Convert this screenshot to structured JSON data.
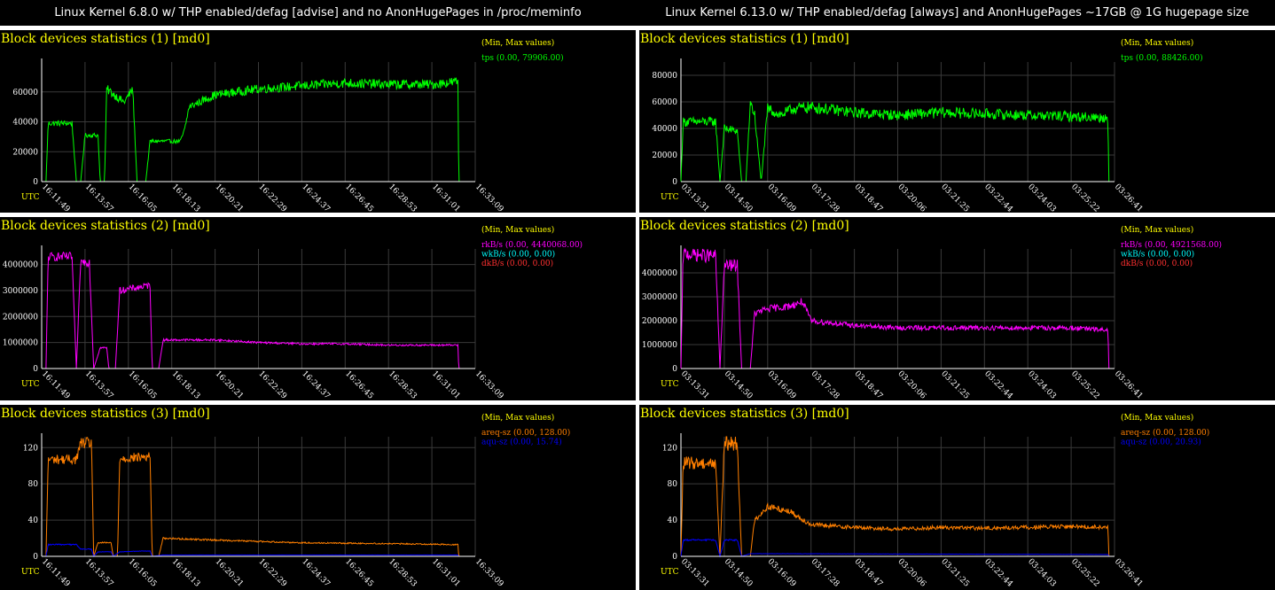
{
  "columns": [
    {
      "title": "Linux Kernel 6.8.0 w/ THP enabled/defag [advise] and no AnonHugePages in /proc/meminfo"
    },
    {
      "title": "Linux Kernel 6.13.0 w/ THP enabled/defag [always] and AnonHugePages ~17GB @ 1G hugepage size"
    }
  ],
  "axis_label": "UTC",
  "legend_header": "(Min, Max values)",
  "chart_data": [
    {
      "type": "line",
      "panel": "left-1",
      "title": "Block devices statistics (1) [md0]",
      "x": [
        "16:11:49",
        "16:13:57",
        "16:16:05",
        "16:18:13",
        "16:20:21",
        "16:22:29",
        "16:24:37",
        "16:26:45",
        "16:28:53",
        "16:31:01",
        "16:33:09"
      ],
      "ylim": [
        0,
        80000
      ],
      "yticks": [
        0,
        20000,
        40000,
        60000
      ],
      "series": [
        {
          "name": "tps",
          "legend": "tps (0.00, 79906.00)",
          "color": "#00ff00",
          "noise": 0.05,
          "points": [
            [
              0,
              0
            ],
            [
              0.1,
              0
            ],
            [
              0.15,
              39000
            ],
            [
              0.7,
              39000
            ],
            [
              0.8,
              0
            ],
            [
              0.9,
              0
            ],
            [
              1.0,
              31000
            ],
            [
              1.3,
              31000
            ],
            [
              1.35,
              0
            ],
            [
              1.45,
              0
            ],
            [
              1.5,
              62000
            ],
            [
              1.9,
              53000
            ],
            [
              2.1,
              62000
            ],
            [
              2.2,
              0
            ],
            [
              2.4,
              0
            ],
            [
              2.5,
              27000
            ],
            [
              3.2,
              27000
            ],
            [
              3.3,
              35000
            ],
            [
              3.4,
              50000
            ],
            [
              4.0,
              58000
            ],
            [
              5.0,
              62000
            ],
            [
              6.0,
              64000
            ],
            [
              7.0,
              66000
            ],
            [
              8.0,
              65000
            ],
            [
              9.0,
              65000
            ],
            [
              9.6,
              67000
            ],
            [
              9.62,
              0
            ],
            [
              10,
              0
            ]
          ]
        }
      ]
    },
    {
      "type": "line",
      "panel": "right-1",
      "title": "Block devices statistics (1) [md0]",
      "x": [
        "03:13:31",
        "03:14:50",
        "03:16:09",
        "03:17:28",
        "03:18:47",
        "03:20:06",
        "03:21:25",
        "03:22:44",
        "03:24:03",
        "03:25:22",
        "03:26:41"
      ],
      "ylim": [
        0,
        90000
      ],
      "yticks": [
        0,
        20000,
        40000,
        60000,
        80000
      ],
      "series": [
        {
          "name": "tps",
          "legend": "tps (0.00, 88426.00)",
          "color": "#00ff00",
          "noise": 0.08,
          "points": [
            [
              0,
              0
            ],
            [
              0.05,
              45000
            ],
            [
              0.8,
              45000
            ],
            [
              0.9,
              0
            ],
            [
              1.0,
              40000
            ],
            [
              1.3,
              38000
            ],
            [
              1.4,
              0
            ],
            [
              1.5,
              0
            ],
            [
              1.6,
              60000
            ],
            [
              1.7,
              50000
            ],
            [
              1.85,
              0
            ],
            [
              2.0,
              55000
            ],
            [
              2.3,
              50000
            ],
            [
              2.6,
              55000
            ],
            [
              3.0,
              56000
            ],
            [
              4.0,
              52000
            ],
            [
              5.0,
              50000
            ],
            [
              6.0,
              52000
            ],
            [
              7.0,
              51000
            ],
            [
              8.0,
              50000
            ],
            [
              9.0,
              49000
            ],
            [
              9.85,
              48000
            ],
            [
              9.87,
              0
            ],
            [
              10,
              0
            ]
          ]
        }
      ]
    },
    {
      "type": "line",
      "panel": "left-2",
      "title": "Block devices statistics (2) [md0]",
      "x": [
        "16:11:49",
        "16:13:57",
        "16:16:05",
        "16:18:13",
        "16:20:21",
        "16:22:29",
        "16:24:37",
        "16:26:45",
        "16:28:53",
        "16:31:01",
        "16:33:09"
      ],
      "ylim": [
        0,
        4600000
      ],
      "yticks": [
        0,
        1000000,
        2000000,
        3000000,
        4000000
      ],
      "series": [
        {
          "name": "rkB/s",
          "legend": "rkB/s (0.00, 4440068.00)",
          "color": "#ff00ff",
          "noise": 0.04,
          "points": [
            [
              0,
              0
            ],
            [
              0.1,
              0
            ],
            [
              0.15,
              4300000
            ],
            [
              0.7,
              4300000
            ],
            [
              0.8,
              0
            ],
            [
              0.9,
              4100000
            ],
            [
              1.1,
              4100000
            ],
            [
              1.2,
              0
            ],
            [
              1.35,
              800000
            ],
            [
              1.5,
              800000
            ],
            [
              1.55,
              0
            ],
            [
              1.7,
              0
            ],
            [
              1.8,
              3000000
            ],
            [
              2.5,
              3200000
            ],
            [
              2.55,
              0
            ],
            [
              2.7,
              0
            ],
            [
              2.8,
              1100000
            ],
            [
              4.0,
              1100000
            ],
            [
              5.0,
              1000000
            ],
            [
              6.0,
              950000
            ],
            [
              7.0,
              950000
            ],
            [
              8.0,
              900000
            ],
            [
              9.0,
              900000
            ],
            [
              9.6,
              900000
            ],
            [
              9.62,
              0
            ],
            [
              10,
              0
            ]
          ]
        },
        {
          "name": "wkB/s",
          "legend": "wkB/s (0.00, 0.00)",
          "color": "#00ffff",
          "noise": 0,
          "points": [
            [
              0,
              0
            ],
            [
              10,
              0
            ]
          ]
        },
        {
          "name": "dkB/s",
          "legend": "dkB/s (0.00, 0.00)",
          "color": "#ff3030",
          "noise": 0,
          "points": [
            [
              0,
              0
            ],
            [
              10,
              0
            ]
          ]
        }
      ]
    },
    {
      "type": "line",
      "panel": "right-2",
      "title": "Block devices statistics (2) [md0]",
      "x": [
        "03:13:31",
        "03:14:50",
        "03:16:09",
        "03:17:28",
        "03:18:47",
        "03:20:06",
        "03:21:25",
        "03:22:44",
        "03:24:03",
        "03:25:22",
        "03:26:41"
      ],
      "ylim": [
        0,
        5000000
      ],
      "yticks": [
        0,
        1000000,
        2000000,
        3000000,
        4000000
      ],
      "series": [
        {
          "name": "rkB/s",
          "legend": "rkB/s (0.00, 4921568.00)",
          "color": "#ff00ff",
          "noise": 0.06,
          "points": [
            [
              0,
              0
            ],
            [
              0.05,
              4800000
            ],
            [
              0.8,
              4700000
            ],
            [
              0.9,
              0
            ],
            [
              1.0,
              4300000
            ],
            [
              1.3,
              4300000
            ],
            [
              1.4,
              0
            ],
            [
              1.6,
              0
            ],
            [
              1.7,
              2300000
            ],
            [
              2.0,
              2500000
            ],
            [
              2.5,
              2600000
            ],
            [
              2.8,
              2800000
            ],
            [
              3.0,
              2000000
            ],
            [
              4.0,
              1800000
            ],
            [
              5.0,
              1700000
            ],
            [
              6.0,
              1700000
            ],
            [
              7.0,
              1700000
            ],
            [
              8.0,
              1700000
            ],
            [
              9.0,
              1700000
            ],
            [
              9.85,
              1600000
            ],
            [
              9.87,
              0
            ],
            [
              10,
              0
            ]
          ]
        },
        {
          "name": "wkB/s",
          "legend": "wkB/s (0.00, 0.00)",
          "color": "#00ffff",
          "noise": 0,
          "points": [
            [
              0,
              0
            ],
            [
              10,
              0
            ]
          ]
        },
        {
          "name": "dkB/s",
          "legend": "dkB/s (0.00, 0.00)",
          "color": "#ff3030",
          "noise": 0,
          "points": [
            [
              0,
              0
            ],
            [
              10,
              0
            ]
          ]
        }
      ]
    },
    {
      "type": "line",
      "panel": "left-3",
      "title": "Block devices statistics (3) [md0]",
      "x": [
        "16:11:49",
        "16:13:57",
        "16:16:05",
        "16:18:13",
        "16:20:21",
        "16:22:29",
        "16:24:37",
        "16:26:45",
        "16:28:53",
        "16:31:01",
        "16:33:09"
      ],
      "ylim": [
        0,
        132
      ],
      "yticks": [
        0,
        40,
        80,
        120
      ],
      "series": [
        {
          "name": "areq-sz",
          "legend": "areq-sz (0.00, 128.00)",
          "color": "#ff7f00",
          "noise": 0.05,
          "points": [
            [
              0,
              0
            ],
            [
              0.1,
              0
            ],
            [
              0.15,
              107
            ],
            [
              0.8,
              107
            ],
            [
              0.9,
              125
            ],
            [
              1.15,
              125
            ],
            [
              1.2,
              0
            ],
            [
              1.3,
              15
            ],
            [
              1.6,
              15
            ],
            [
              1.65,
              0
            ],
            [
              1.75,
              0
            ],
            [
              1.8,
              108
            ],
            [
              2.5,
              110
            ],
            [
              2.55,
              0
            ],
            [
              2.7,
              0
            ],
            [
              2.8,
              20
            ],
            [
              4.0,
              18
            ],
            [
              6.0,
              15
            ],
            [
              8.0,
              14
            ],
            [
              9.6,
              13
            ],
            [
              9.62,
              0
            ],
            [
              10,
              0
            ]
          ]
        },
        {
          "name": "aqu-sz",
          "legend": "aqu-sz (0.00, 15.74)",
          "color": "#0000ff",
          "noise": 0.05,
          "points": [
            [
              0,
              0
            ],
            [
              0.1,
              0
            ],
            [
              0.15,
              13
            ],
            [
              0.8,
              13
            ],
            [
              0.9,
              8
            ],
            [
              1.15,
              8
            ],
            [
              1.2,
              0
            ],
            [
              1.3,
              5
            ],
            [
              1.6,
              5
            ],
            [
              1.65,
              0
            ],
            [
              1.8,
              5
            ],
            [
              2.5,
              6
            ],
            [
              2.55,
              0
            ],
            [
              2.8,
              1.5
            ],
            [
              9.6,
              1.5
            ],
            [
              9.62,
              0
            ],
            [
              10,
              0
            ]
          ]
        }
      ]
    },
    {
      "type": "line",
      "panel": "right-3",
      "title": "Block devices statistics (3) [md0]",
      "x": [
        "03:13:31",
        "03:14:50",
        "03:16:09",
        "03:17:28",
        "03:18:47",
        "03:20:06",
        "03:21:25",
        "03:22:44",
        "03:24:03",
        "03:25:22",
        "03:26:41"
      ],
      "ylim": [
        0,
        132
      ],
      "yticks": [
        0,
        40,
        80,
        120
      ],
      "series": [
        {
          "name": "areq-sz",
          "legend": "areq-sz (0.00, 128.00)",
          "color": "#ff7f00",
          "noise": 0.07,
          "points": [
            [
              0,
              0
            ],
            [
              0.05,
              103
            ],
            [
              0.8,
              103
            ],
            [
              0.9,
              0
            ],
            [
              1.0,
              125
            ],
            [
              1.3,
              125
            ],
            [
              1.4,
              0
            ],
            [
              1.6,
              0
            ],
            [
              1.7,
              40
            ],
            [
              2.0,
              55
            ],
            [
              2.5,
              50
            ],
            [
              3.0,
              35
            ],
            [
              4.0,
              32
            ],
            [
              5.0,
              30
            ],
            [
              6.0,
              32
            ],
            [
              7.0,
              31
            ],
            [
              8.0,
              32
            ],
            [
              9.0,
              33
            ],
            [
              9.85,
              32
            ],
            [
              9.87,
              0
            ],
            [
              10,
              0
            ]
          ]
        },
        {
          "name": "aqu-sz",
          "legend": "aqu-sz (0.00, 20.93)",
          "color": "#0000ff",
          "noise": 0.05,
          "points": [
            [
              0,
              0
            ],
            [
              0.05,
              18
            ],
            [
              0.8,
              18
            ],
            [
              0.9,
              0
            ],
            [
              1.0,
              18
            ],
            [
              1.3,
              18
            ],
            [
              1.4,
              0
            ],
            [
              1.6,
              3
            ],
            [
              9.85,
              2
            ],
            [
              9.87,
              0
            ],
            [
              10,
              0
            ]
          ]
        }
      ]
    }
  ]
}
